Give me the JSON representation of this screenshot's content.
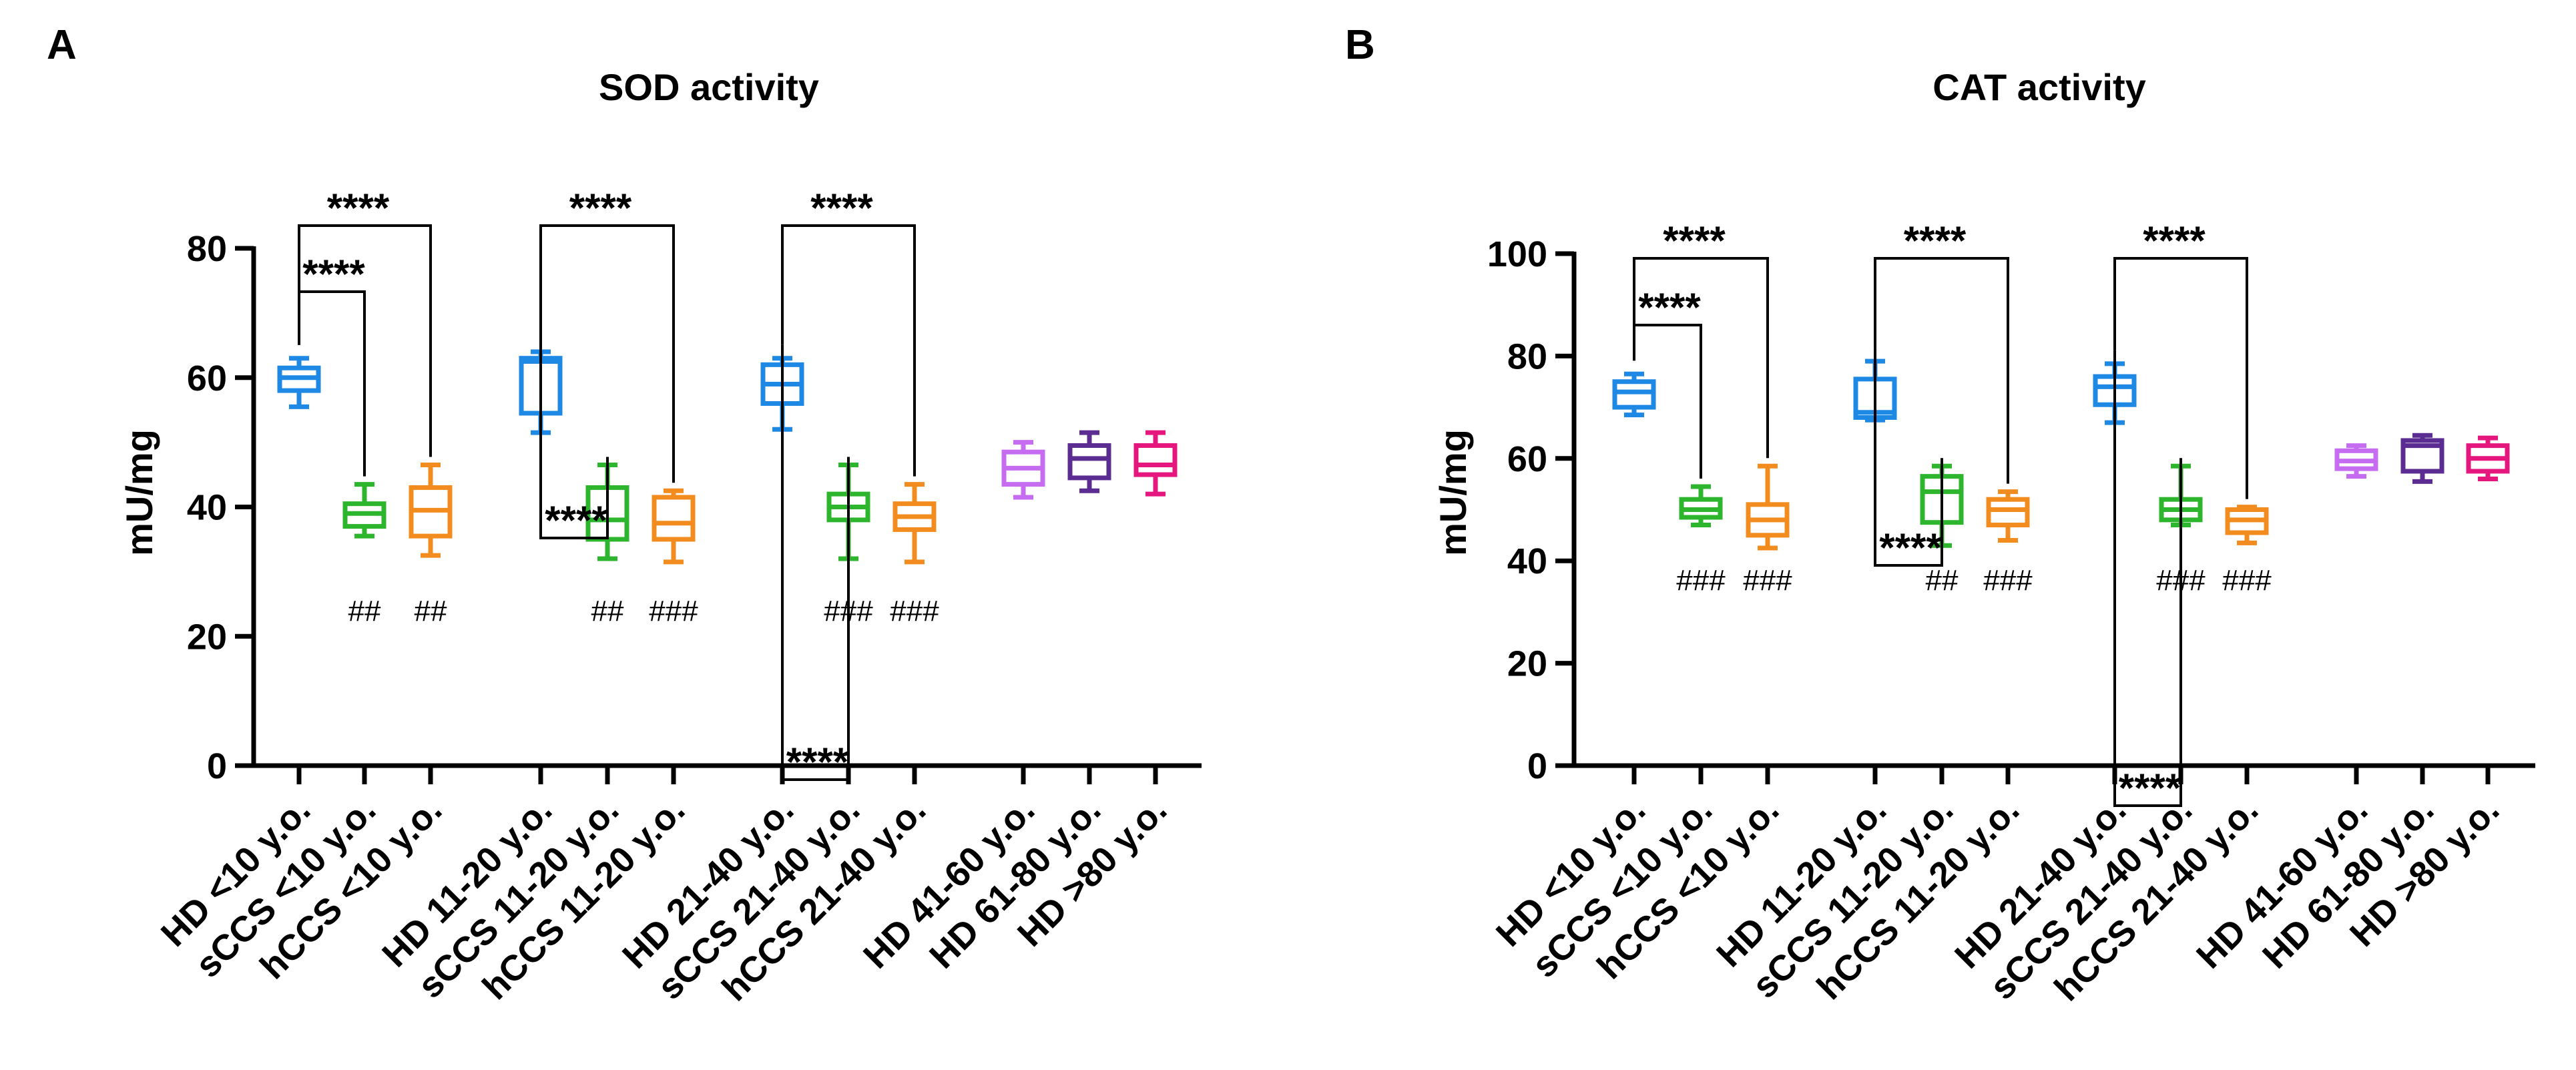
{
  "chart_data": [
    {
      "type": "box",
      "panel": "A",
      "title": "SOD activity",
      "ylabel": "mU/mg",
      "ylim": [
        0,
        80
      ],
      "yticks": [
        0,
        20,
        40,
        60,
        80
      ],
      "categories": [
        "HD <10 y.o.",
        "sCCS <10 y.o.",
        "hCCS <10 y.o.",
        "HD 11-20 y.o.",
        "sCCS 11-20 y.o.",
        "hCCS 11-20 y.o.",
        "HD 21-40 y.o.",
        "sCCS 21-40 y.o.",
        "hCCS 21-40 y.o.",
        "HD 41-60 y.o.",
        "HD 61-80 y.o.",
        "HD >80 y.o."
      ],
      "boxes": [
        {
          "category": "HD <10 y.o.",
          "min": 55.5,
          "q1": 58,
          "median": 60,
          "q3": 61.5,
          "max": 63,
          "color": "#1E88E5"
        },
        {
          "category": "sCCS <10 y.o.",
          "min": 35.5,
          "q1": 37,
          "median": 39,
          "q3": 40.5,
          "max": 43.5,
          "color": "#2DB52D"
        },
        {
          "category": "hCCS <10 y.o.",
          "min": 32.5,
          "q1": 35.5,
          "median": 39.5,
          "q3": 43,
          "max": 46.5,
          "color": "#F28C1E"
        },
        {
          "category": "HD 11-20 y.o.",
          "min": 51.5,
          "q1": 54.5,
          "median": 62.5,
          "q3": 63,
          "max": 64,
          "color": "#1E88E5"
        },
        {
          "category": "sCCS 11-20 y.o.",
          "min": 32,
          "q1": 35,
          "median": 38,
          "q3": 43,
          "max": 46.5,
          "color": "#2DB52D"
        },
        {
          "category": "hCCS 11-20 y.o.",
          "min": 31.5,
          "q1": 35,
          "median": 37.5,
          "q3": 41.5,
          "max": 42.5,
          "color": "#F28C1E"
        },
        {
          "category": "HD 21-40 y.o.",
          "min": 52,
          "q1": 56,
          "median": 59,
          "q3": 62,
          "max": 63,
          "color": "#1E88E5"
        },
        {
          "category": "sCCS 21-40 y.o.",
          "min": 32,
          "q1": 38,
          "median": 40,
          "q3": 42,
          "max": 46.5,
          "color": "#2DB52D"
        },
        {
          "category": "hCCS 21-40 y.o.",
          "min": 31.5,
          "q1": 36.5,
          "median": 38.5,
          "q3": 40.5,
          "max": 43.5,
          "color": "#F28C1E"
        },
        {
          "category": "HD 41-60 y.o.",
          "min": 41.5,
          "q1": 43.5,
          "median": 46,
          "q3": 48.5,
          "max": 50,
          "color": "#C56CF0"
        },
        {
          "category": "HD 61-80 y.o.",
          "min": 42.5,
          "q1": 44.5,
          "median": 47.5,
          "q3": 49.5,
          "max": 51.5,
          "color": "#5B2C91"
        },
        {
          "category": "HD >80 y.o.",
          "min": 42,
          "q1": 45,
          "median": 46.5,
          "q3": 49.5,
          "max": 51.5,
          "color": "#E5177E"
        }
      ],
      "significance": [
        {
          "from": 0,
          "to": 1,
          "label": "****"
        },
        {
          "from": 0,
          "to": 2,
          "label": "****"
        },
        {
          "from": 3,
          "to": 4,
          "label": "****"
        },
        {
          "from": 3,
          "to": 5,
          "label": "****"
        },
        {
          "from": 6,
          "to": 7,
          "label": "****"
        },
        {
          "from": 6,
          "to": 8,
          "label": "****"
        }
      ],
      "hash_marks": [
        {
          "category": "sCCS <10 y.o.",
          "label": "##"
        },
        {
          "category": "hCCS <10 y.o.",
          "label": "##"
        },
        {
          "category": "sCCS 11-20 y.o.",
          "label": "##"
        },
        {
          "category": "hCCS 11-20 y.o.",
          "label": "###"
        },
        {
          "category": "sCCS 21-40 y.o.",
          "label": "###"
        },
        {
          "category": "hCCS 21-40 y.o.",
          "label": "###"
        }
      ]
    },
    {
      "type": "box",
      "panel": "B",
      "title": "CAT activity",
      "ylabel": "mU/mg",
      "ylim": [
        0,
        100
      ],
      "yticks": [
        0,
        20,
        40,
        60,
        80,
        100
      ],
      "categories": [
        "HD <10 y.o.",
        "sCCS <10 y.o.",
        "hCCS <10 y.o.",
        "HD 11-20 y.o.",
        "sCCS 11-20 y.o.",
        "hCCS 11-20 y.o.",
        "HD 21-40 y.o.",
        "sCCS 21-40 y.o.",
        "hCCS 21-40 y.o.",
        "HD 41-60 y.o.",
        "HD 61-80 y.o.",
        "HD >80 y.o."
      ],
      "boxes": [
        {
          "category": "HD <10 y.o.",
          "min": 68.5,
          "q1": 70,
          "median": 73,
          "q3": 75,
          "max": 76.5,
          "color": "#1E88E5"
        },
        {
          "category": "sCCS <10 y.o.",
          "min": 47,
          "q1": 48.5,
          "median": 50,
          "q3": 52,
          "max": 54.5,
          "color": "#2DB52D"
        },
        {
          "category": "hCCS <10 y.o.",
          "min": 42.5,
          "q1": 45,
          "median": 48,
          "q3": 51,
          "max": 58.5,
          "color": "#F28C1E"
        },
        {
          "category": "HD 11-20 y.o.",
          "min": 67.5,
          "q1": 68,
          "median": 69,
          "q3": 75.5,
          "max": 79,
          "color": "#1E88E5"
        },
        {
          "category": "sCCS 11-20 y.o.",
          "min": 43,
          "q1": 47.5,
          "median": 53.5,
          "q3": 56.5,
          "max": 58.5,
          "color": "#2DB52D"
        },
        {
          "category": "hCCS 11-20 y.o.",
          "min": 44,
          "q1": 47,
          "median": 50,
          "q3": 52,
          "max": 53.5,
          "color": "#F28C1E"
        },
        {
          "category": "HD 21-40 y.o.",
          "min": 67,
          "q1": 70.5,
          "median": 74,
          "q3": 76,
          "max": 78.5,
          "color": "#1E88E5"
        },
        {
          "category": "sCCS 21-40 y.o.",
          "min": 47,
          "q1": 48,
          "median": 50,
          "q3": 52,
          "max": 58.5,
          "color": "#2DB52D"
        },
        {
          "category": "hCCS 21-40 y.o.",
          "min": 43.5,
          "q1": 45.5,
          "median": 48,
          "q3": 50,
          "max": 50.5,
          "color": "#F28C1E"
        },
        {
          "category": "HD 41-60 y.o.",
          "min": 56.5,
          "q1": 58,
          "median": 59.5,
          "q3": 61.5,
          "max": 62.5,
          "color": "#C56CF0"
        },
        {
          "category": "HD 61-80 y.o.",
          "min": 55.5,
          "q1": 57.5,
          "median": 62.5,
          "q3": 63.5,
          "max": 64.5,
          "color": "#5B2C91"
        },
        {
          "category": "HD >80 y.o.",
          "min": 56,
          "q1": 57.5,
          "median": 60,
          "q3": 62.5,
          "max": 64,
          "color": "#E5177E"
        }
      ],
      "significance": [
        {
          "from": 0,
          "to": 1,
          "label": "****"
        },
        {
          "from": 0,
          "to": 2,
          "label": "****"
        },
        {
          "from": 3,
          "to": 4,
          "label": "****"
        },
        {
          "from": 3,
          "to": 5,
          "label": "****"
        },
        {
          "from": 6,
          "to": 7,
          "label": "****"
        },
        {
          "from": 6,
          "to": 8,
          "label": "****"
        }
      ],
      "hash_marks": [
        {
          "category": "sCCS <10 y.o.",
          "label": "###"
        },
        {
          "category": "hCCS <10 y.o.",
          "label": "###"
        },
        {
          "category": "sCCS 11-20 y.o.",
          "label": "##"
        },
        {
          "category": "hCCS 11-20 y.o.",
          "label": "###"
        },
        {
          "category": "sCCS 21-40 y.o.",
          "label": "###"
        },
        {
          "category": "hCCS 21-40 y.o.",
          "label": "###"
        }
      ]
    }
  ]
}
